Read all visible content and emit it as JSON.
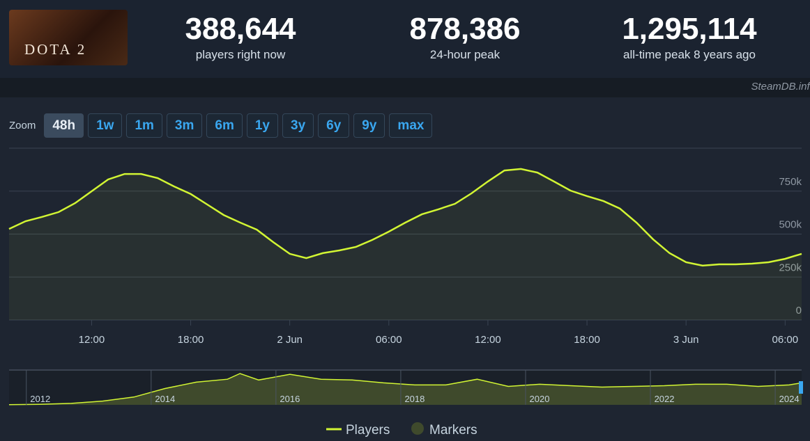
{
  "header": {
    "logo_text": "DOTA 2",
    "stats": [
      {
        "value": "388,644",
        "label": "players right now"
      },
      {
        "value": "878,386",
        "label": "24-hour peak"
      },
      {
        "value": "1,295,114",
        "label": "all-time peak 8 years ago"
      }
    ],
    "credit": "SteamDB.info"
  },
  "zoom": {
    "label": "Zoom",
    "buttons": [
      "48h",
      "1w",
      "1m",
      "3m",
      "6m",
      "1y",
      "3y",
      "6y",
      "9y",
      "max"
    ],
    "active": 0
  },
  "chart_data": [
    {
      "type": "line",
      "x": [
        7,
        8,
        9,
        10,
        11,
        12,
        13,
        14,
        15,
        16,
        17,
        18,
        19,
        20,
        21,
        22,
        23,
        24,
        25,
        26,
        27,
        28,
        29,
        30,
        31,
        32,
        33,
        34,
        35,
        36,
        37,
        38,
        39,
        40,
        41,
        42,
        43,
        44,
        45,
        46,
        47,
        48,
        49,
        50,
        51,
        52,
        53,
        54,
        55
      ],
      "series": [
        {
          "name": "Players",
          "color": "#d2f533",
          "values": [
            530000,
            575000,
            600000,
            628000,
            680000,
            749000,
            818000,
            850000,
            850000,
            826000,
            777000,
            733000,
            672000,
            611000,
            567000,
            526000,
            453000,
            385000,
            360000,
            389000,
            405000,
            425000,
            466000,
            514000,
            567000,
            615000,
            644000,
            676000,
            737000,
            806000,
            870000,
            879000,
            858000,
            806000,
            753000,
            721000,
            692000,
            648000,
            567000,
            470000,
            389000,
            336000,
            316000,
            324000,
            324000,
            328000,
            336000,
            356000,
            385000
          ]
        }
      ],
      "xlim": [
        7,
        55
      ],
      "xticks": [
        {
          "value": 12,
          "label": "12:00"
        },
        {
          "value": 18,
          "label": "18:00"
        },
        {
          "value": 24,
          "label": "2 Jun"
        },
        {
          "value": 30,
          "label": "06:00"
        },
        {
          "value": 36,
          "label": "12:00"
        },
        {
          "value": 42,
          "label": "18:00"
        },
        {
          "value": 48,
          "label": "3 Jun"
        },
        {
          "value": 54,
          "label": "06:00"
        }
      ],
      "ylim": [
        0,
        1000000
      ],
      "yticks": [
        {
          "value": 0,
          "label": "0"
        },
        {
          "value": 250000,
          "label": "250k"
        },
        {
          "value": 500000,
          "label": "500k"
        },
        {
          "value": 750000,
          "label": "750k"
        }
      ],
      "grid": true,
      "markers_legend": "Markers",
      "markers_color": "#3f4a2c"
    },
    {
      "type": "area",
      "x": [
        2011.5,
        2012,
        2012.5,
        2013,
        2013.5,
        2014,
        2014.5,
        2015,
        2015.2,
        2015.5,
        2016,
        2016.5,
        2017,
        2017.5,
        2018,
        2018.5,
        2019,
        2019.5,
        2020,
        2020.5,
        2021,
        2021.5,
        2022,
        2022.5,
        2023,
        2023.5,
        2024,
        2024.2
      ],
      "values": [
        5000,
        20000,
        60000,
        150000,
        314000,
        657000,
        914000,
        1030000,
        1260000,
        1000000,
        1230000,
        1030000,
        1000000,
        886000,
        800000,
        800000,
        1030000,
        743000,
        829000,
        771000,
        714000,
        743000,
        771000,
        829000,
        829000,
        743000,
        800000,
        886000
      ],
      "color": "#d2f533",
      "xlim": [
        2011.5,
        2024.2
      ],
      "ylim": [
        0,
        1400000
      ],
      "xticks": [
        2012,
        2014,
        2016,
        2018,
        2020,
        2022,
        2024
      ]
    }
  ]
}
